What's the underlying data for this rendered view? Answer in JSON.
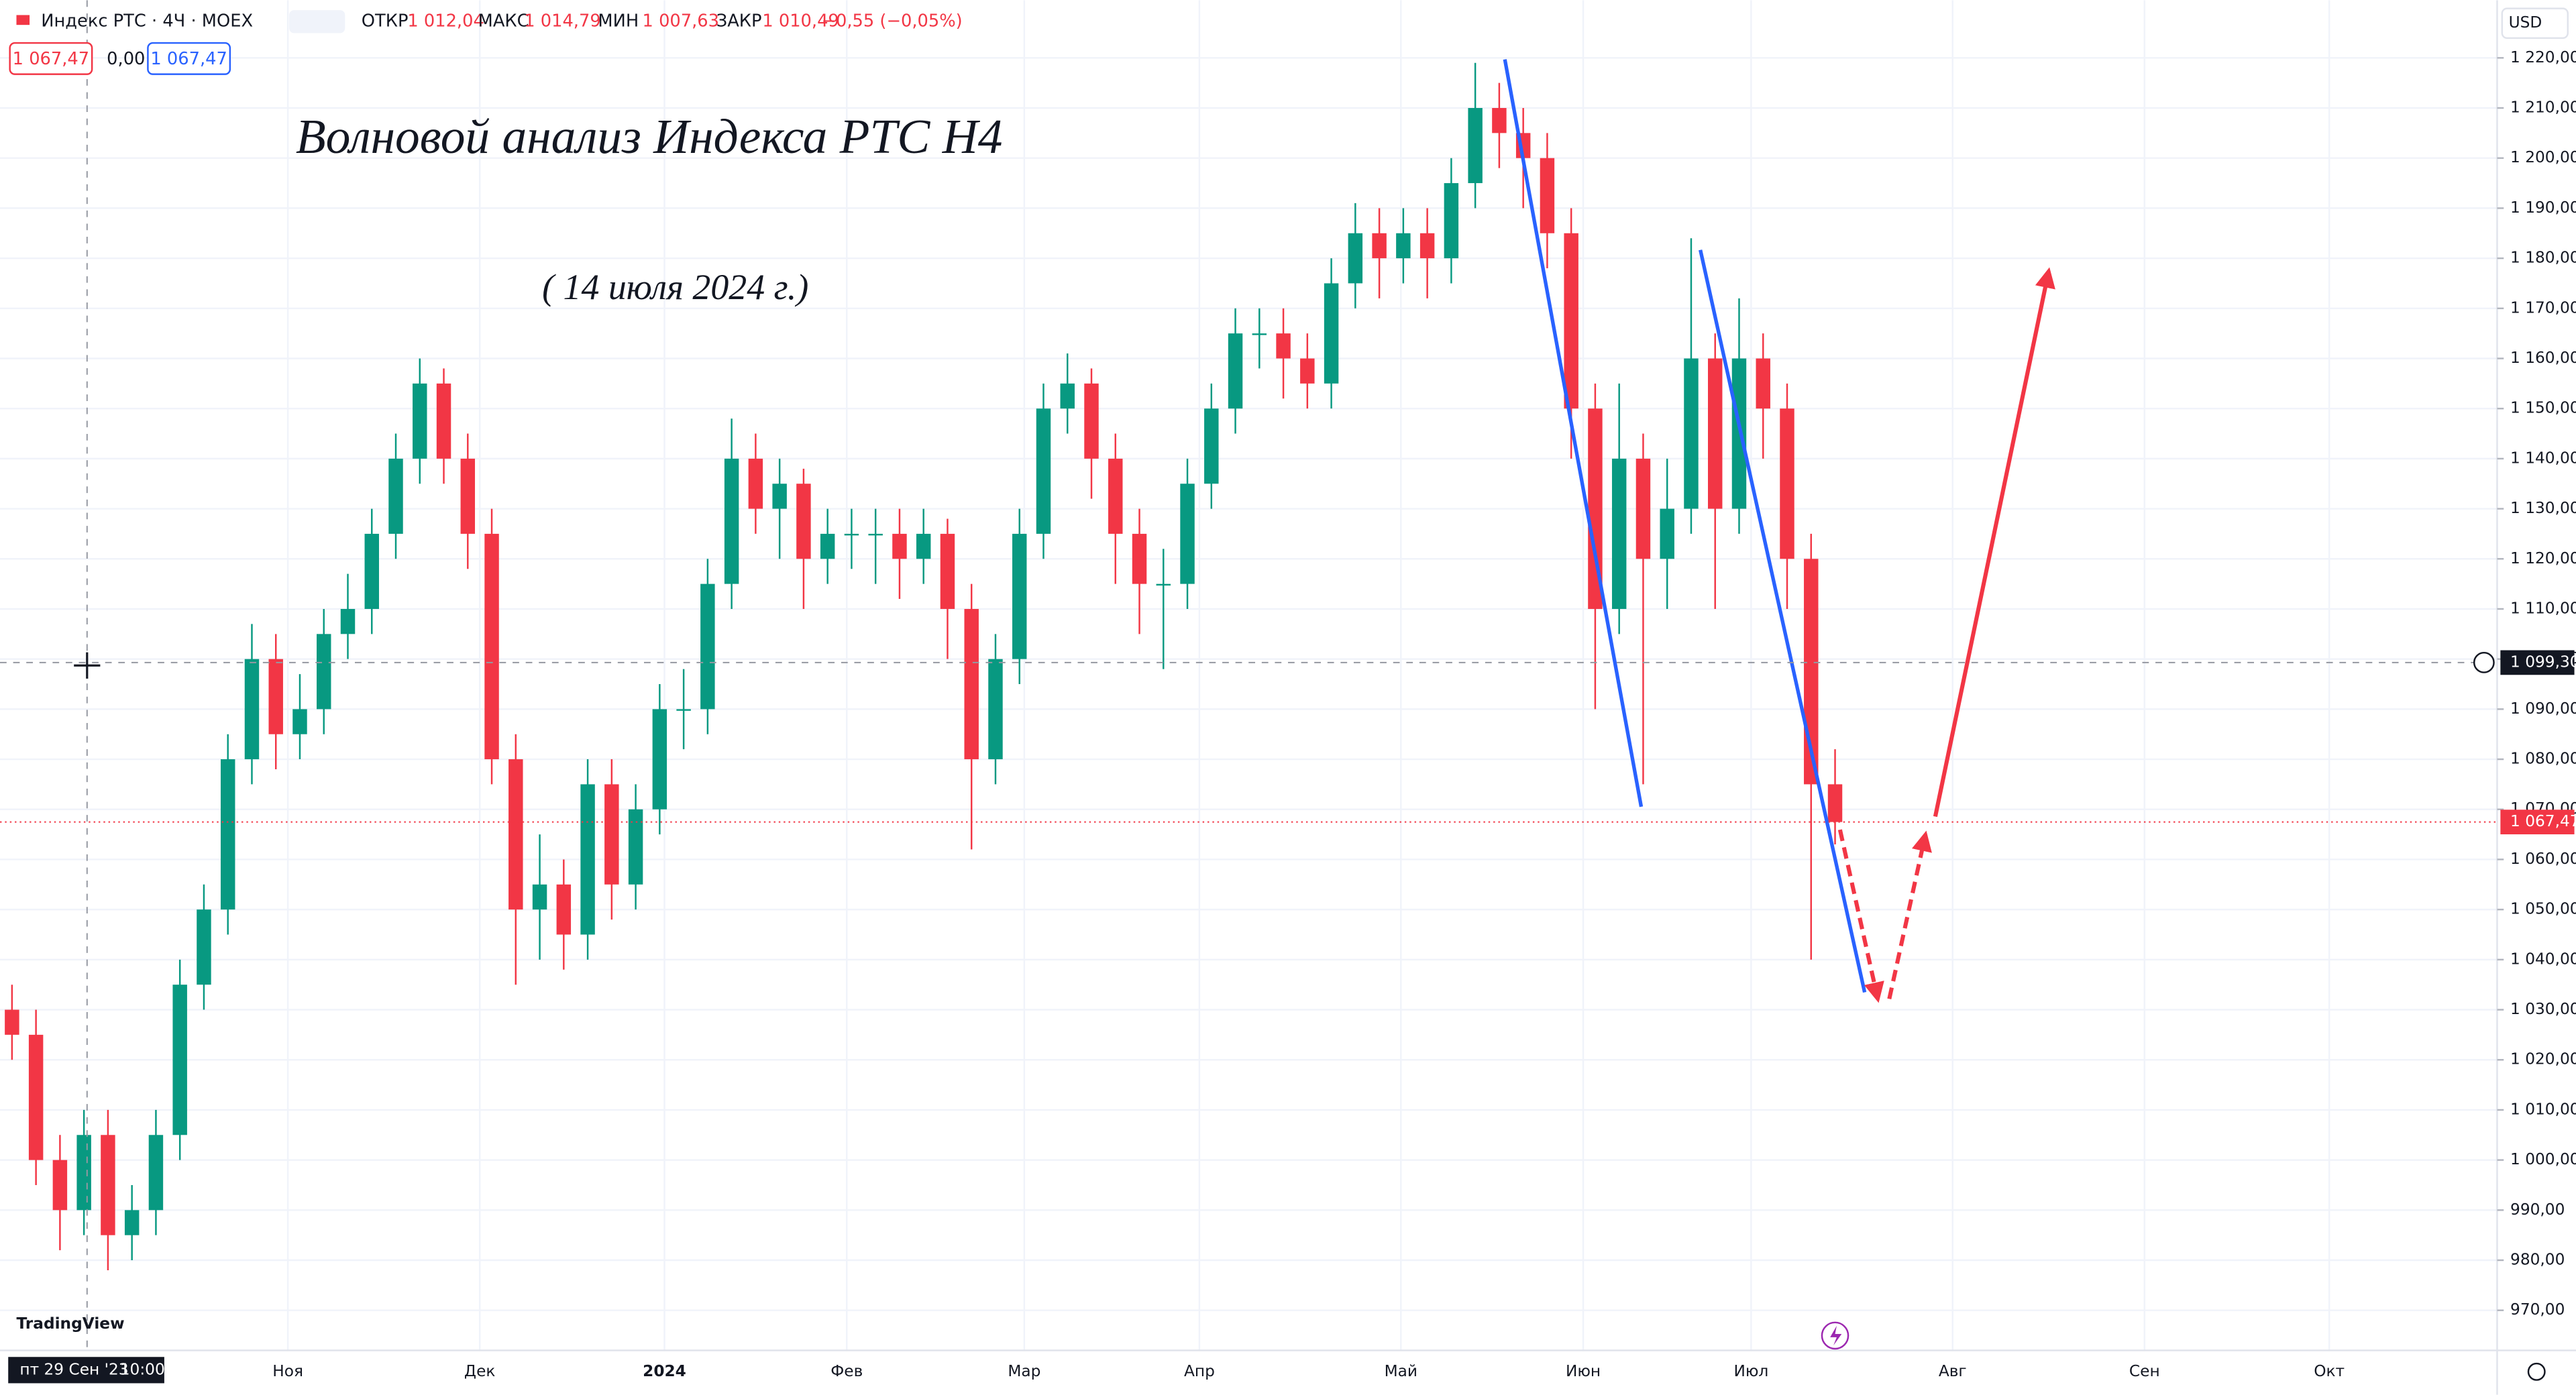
{
  "header": {
    "symbol": "Индекс РТС · 4Ч · MOEX",
    "open_label": "ОТКР",
    "open": "1 012,04",
    "high_label": "МАКС",
    "high": "1 014,79",
    "low_label": "МИН",
    "low": "1 007,63",
    "close_label": "ЗАКР",
    "close": "1 010,49",
    "change": "−0,55 (−0,05%)",
    "bid": "1 067,47",
    "spread": "0,00",
    "ask": "1 067,47",
    "currency": "USD",
    "crosshair_date": "пт 29 Сен '23",
    "crosshair_time": "10:00",
    "brand": "TradingView"
  },
  "chart_data": {
    "type": "candlestick",
    "title": "Волновой анализ Индекса РТС Н4",
    "subtitle": "( 14 июля 2024 г.)",
    "up_color": "#089981",
    "down_color": "#f23645",
    "grid": true,
    "xlim": [
      -0.5,
      103.6
    ],
    "ylim": [
      962,
      1231.5
    ],
    "xticks": [
      {
        "value": 11.5,
        "label": "Ноя"
      },
      {
        "value": 19.5,
        "label": "Дек"
      },
      {
        "value": 27.2,
        "label": "2024"
      },
      {
        "value": 34.8,
        "label": "Фев"
      },
      {
        "value": 42.2,
        "label": "Мар"
      },
      {
        "value": 49.5,
        "label": "Апр"
      },
      {
        "value": 57.9,
        "label": "Май"
      },
      {
        "value": 65.5,
        "label": "Июн"
      },
      {
        "value": 72.5,
        "label": "Июл"
      },
      {
        "value": 80.9,
        "label": "Авг"
      },
      {
        "value": 88.9,
        "label": "Сен"
      },
      {
        "value": 96.6,
        "label": "Окт"
      }
    ],
    "yticks": [
      {
        "value": 970,
        "label": "970,00"
      },
      {
        "value": 980,
        "label": "980,00"
      },
      {
        "value": 990,
        "label": "990,00"
      },
      {
        "value": 1000,
        "label": "1 000,00"
      },
      {
        "value": 1010,
        "label": "1 010,00"
      },
      {
        "value": 1020,
        "label": "1 020,00"
      },
      {
        "value": 1030,
        "label": "1 030,00"
      },
      {
        "value": 1040,
        "label": "1 040,00"
      },
      {
        "value": 1050,
        "label": "1 050,00"
      },
      {
        "value": 1060,
        "label": "1 060,00"
      },
      {
        "value": 1070,
        "label": "1 070,00"
      },
      {
        "value": 1080,
        "label": "1 080,00"
      },
      {
        "value": 1090,
        "label": "1 090,00"
      },
      {
        "value": 1100,
        "label": "1 100,00"
      },
      {
        "value": 1110,
        "label": "1 110,00"
      },
      {
        "value": 1120,
        "label": "1 120,00"
      },
      {
        "value": 1130,
        "label": "1 130,00"
      },
      {
        "value": 1140,
        "label": "1 140,00"
      },
      {
        "value": 1150,
        "label": "1 150,00"
      },
      {
        "value": 1160,
        "label": "1 160,00"
      },
      {
        "value": 1170,
        "label": "1 170,00"
      },
      {
        "value": 1180,
        "label": "1 180,00"
      },
      {
        "value": 1190,
        "label": "1 190,00"
      },
      {
        "value": 1200,
        "label": "1 200,00"
      },
      {
        "value": 1210,
        "label": "1 210,00"
      },
      {
        "value": 1220,
        "label": "1 220,00"
      }
    ],
    "x": [
      0,
      1,
      2,
      3,
      4,
      5,
      6,
      7,
      8,
      9,
      10,
      11,
      12,
      13,
      14,
      15,
      16,
      17,
      18,
      19,
      20,
      21,
      22,
      23,
      24,
      25,
      26,
      27,
      28,
      29,
      30,
      31,
      32,
      33,
      34,
      35,
      36,
      37,
      38,
      39,
      40,
      41,
      42,
      43,
      44,
      45,
      46,
      47,
      48,
      49,
      50,
      51,
      52,
      53,
      54,
      55,
      56,
      57,
      58,
      59,
      60,
      61,
      62,
      63,
      64,
      65,
      66,
      67,
      68,
      69,
      70,
      71,
      72,
      73,
      74,
      75,
      76
    ],
    "open": [
      1030,
      1025,
      1000,
      990,
      1005,
      985,
      990,
      1005,
      1035,
      1050,
      1080,
      1100,
      1085,
      1090,
      1105,
      1110,
      1125,
      1140,
      1155,
      1140,
      1125,
      1080,
      1050,
      1055,
      1045,
      1075,
      1055,
      1070,
      1090,
      1090,
      1115,
      1140,
      1130,
      1135,
      1120,
      1125,
      1125,
      1125,
      1120,
      1125,
      1110,
      1080,
      1100,
      1125,
      1150,
      1155,
      1140,
      1125,
      1115,
      1115,
      1135,
      1150,
      1165,
      1165,
      1160,
      1155,
      1175,
      1185,
      1180,
      1185,
      1180,
      1195,
      1210,
      1205,
      1200,
      1185,
      1150,
      1110,
      1140,
      1120,
      1130,
      1160,
      1130,
      1160,
      1150,
      1120,
      1075
    ],
    "high": [
      1035,
      1030,
      1005,
      1010,
      1010,
      995,
      1010,
      1040,
      1055,
      1085,
      1107,
      1105,
      1097,
      1110,
      1117,
      1130,
      1145,
      1160,
      1158,
      1145,
      1130,
      1085,
      1065,
      1060,
      1080,
      1080,
      1075,
      1095,
      1098,
      1120,
      1148,
      1145,
      1140,
      1138,
      1130,
      1130,
      1130,
      1130,
      1130,
      1128,
      1115,
      1105,
      1130,
      1155,
      1161,
      1158,
      1145,
      1130,
      1122,
      1140,
      1155,
      1170,
      1170,
      1170,
      1165,
      1180,
      1191,
      1190,
      1190,
      1190,
      1200,
      1219,
      1215,
      1210,
      1205,
      1190,
      1155,
      1155,
      1145,
      1140,
      1184,
      1165,
      1172,
      1165,
      1155,
      1125,
      1082
    ],
    "low": [
      1020,
      995,
      982,
      985,
      978,
      980,
      985,
      1000,
      1030,
      1045,
      1075,
      1078,
      1080,
      1085,
      1100,
      1105,
      1120,
      1135,
      1135,
      1118,
      1075,
      1035,
      1040,
      1038,
      1040,
      1048,
      1050,
      1065,
      1082,
      1085,
      1110,
      1125,
      1120,
      1110,
      1115,
      1118,
      1115,
      1112,
      1115,
      1100,
      1062,
      1075,
      1095,
      1120,
      1145,
      1132,
      1115,
      1105,
      1098,
      1110,
      1130,
      1145,
      1158,
      1152,
      1150,
      1150,
      1170,
      1172,
      1175,
      1172,
      1175,
      1190,
      1198,
      1190,
      1178,
      1140,
      1090,
      1105,
      1075,
      1110,
      1125,
      1110,
      1125,
      1140,
      1110,
      1040,
      1063
    ],
    "close": [
      1025,
      1000,
      990,
      1005,
      985,
      990,
      1005,
      1035,
      1050,
      1080,
      1100,
      1085,
      1090,
      1105,
      1110,
      1125,
      1140,
      1155,
      1140,
      1125,
      1080,
      1050,
      1055,
      1045,
      1075,
      1055,
      1070,
      1090,
      1090,
      1115,
      1140,
      1130,
      1135,
      1120,
      1125,
      1125,
      1125,
      1120,
      1125,
      1110,
      1080,
      1100,
      1125,
      1150,
      1155,
      1140,
      1125,
      1115,
      1115,
      1135,
      1150,
      1165,
      1165,
      1160,
      1155,
      1175,
      1185,
      1180,
      1185,
      1180,
      1195,
      1210,
      1205,
      1200,
      1185,
      1150,
      1110,
      1140,
      1120,
      1130,
      1160,
      1130,
      1160,
      1150,
      1120,
      1075,
      1067.47
    ],
    "last_price": {
      "value": 1067.47,
      "label": "1 067,47"
    },
    "crosshair_price": {
      "value": 1099.3,
      "label": "1 099,30"
    }
  }
}
